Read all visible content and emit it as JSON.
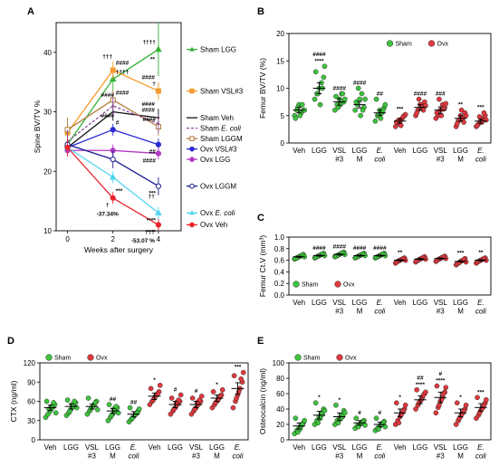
{
  "figure": {
    "panel_labels": [
      "A",
      "B",
      "C",
      "D",
      "E"
    ]
  },
  "chart_data": [
    {
      "panel": "A",
      "type": "line",
      "xlabel": "Weeks after surgery",
      "ylabel": "Spine BV/TV %",
      "x": [
        0,
        2,
        4
      ],
      "xticks": [
        "0",
        "2",
        "4"
      ],
      "ylim": [
        10,
        45
      ],
      "yticks": [
        "10",
        "20",
        "30",
        "40"
      ],
      "series": [
        {
          "name": "Sham LGG",
          "color": "#33b233",
          "marker": "triangle",
          "fill": "filled",
          "values": [
            24.5,
            35.5,
            40.5
          ],
          "err": [
            1.5,
            2,
            4.5
          ],
          "ann": [
            "",
            "††††",
            "††††"
          ]
        },
        {
          "name": "Sham VSL#3",
          "color": "#f39c2e",
          "marker": "square",
          "fill": "filled",
          "values": [
            26.5,
            37,
            33.5
          ],
          "err": [
            1.5,
            1.5,
            1.5
          ],
          "ann": [
            "",
            "####",
            "†"
          ]
        },
        {
          "name": "Sham Veh",
          "color": "#111111",
          "marker": "none",
          "fill": "filled",
          "values": [
            24,
            30,
            29
          ],
          "err": [
            1,
            1.5,
            1.5
          ],
          "ann": [
            "",
            "",
            ""
          ]
        },
        {
          "name": "Sham LGGM",
          "color": "#b07c3c",
          "marker": "square",
          "fill": "open",
          "values": [
            27,
            32,
            27.5
          ],
          "err": [
            2,
            1.5,
            1.5
          ],
          "ann": [
            "",
            "####",
            "####"
          ]
        },
        {
          "name": "Sham E. coli",
          "color": "#8e4a9e",
          "marker": "none",
          "fill": "dashed",
          "values": [
            25,
            31,
            28
          ],
          "err": [
            2,
            1.5,
            1.5
          ],
          "ann": [
            "",
            "",
            ""
          ]
        },
        {
          "name": "Ovx VSL#3",
          "color": "#2b2bd0",
          "marker": "circle",
          "fill": "filled",
          "values": [
            24,
            27,
            24.5
          ],
          "err": [
            1,
            1,
            1
          ],
          "ann": [
            "",
            "#",
            "##"
          ]
        },
        {
          "name": "Ovx LGG",
          "color": "#b238c4",
          "marker": "circle",
          "fill": "filled",
          "values": [
            23.5,
            23.5,
            23
          ],
          "err": [
            1,
            1,
            1
          ],
          "ann": [
            "",
            "",
            "####"
          ]
        },
        {
          "name": "Ovx LGGM",
          "color": "#1a1a90",
          "marker": "circle",
          "fill": "open",
          "values": [
            24.5,
            22,
            17.5
          ],
          "err": [
            1,
            1.5,
            1.5
          ],
          "ann": [
            "",
            "",
            "***"
          ]
        },
        {
          "name": "Ovx E. coli",
          "color": "#4fd4ee",
          "marker": "triangle",
          "fill": "filled",
          "values": [
            24,
            19,
            13
          ],
          "err": [
            1,
            1,
            1
          ],
          "ann": [
            "",
            "",
            "****"
          ]
        },
        {
          "name": "Ovx Veh",
          "color": "#e8232d",
          "marker": "circle",
          "fill": "filled",
          "values": [
            24,
            15.5,
            11
          ],
          "err": [
            1.5,
            1,
            1
          ],
          "ann": [
            "",
            "***",
            "****"
          ]
        }
      ],
      "legend_order": [
        "Sham LGG",
        "Sham VSL#3",
        "Sham Veh",
        "Sham LGGM",
        "Sham E. coli",
        "Ovx VSL#3",
        "Ovx LGG",
        "Ovx LGGM",
        "Ovx E. coli",
        "Ovx Veh"
      ],
      "annotations": [
        {
          "text": "**",
          "x": 4,
          "y": 38.5
        },
        {
          "text": "####",
          "x": 4,
          "y": 35.5
        },
        {
          "text": "†††",
          "x": 2,
          "y": 39
        },
        {
          "text": "####",
          "x": 2,
          "y": 32.5
        },
        {
          "text": "####",
          "x": 4,
          "y": 31
        },
        {
          "text": "####",
          "x": 4,
          "y": 30
        },
        {
          "text": "####",
          "x": 2,
          "y": 29
        },
        {
          "text": "†",
          "x": 2,
          "y": 14
        },
        {
          "text": "††",
          "x": 4,
          "y": 15.5
        },
        {
          "text": "†††",
          "x": 4,
          "y": 9.5
        },
        {
          "text": "-37.34%",
          "x": 2,
          "y": 12.5
        },
        {
          "text": "-53.07 %",
          "x": 4,
          "y": 8
        }
      ]
    },
    {
      "panel": "B",
      "type": "scatter",
      "ylabel": "Femur BV/TV (%)",
      "ylim": [
        0,
        20
      ],
      "yticks": [
        "0",
        "5",
        "10",
        "15",
        "20"
      ],
      "categories": [
        "Veh",
        "LGG",
        "VSL #3",
        "LGG M",
        "E. coli",
        "Veh",
        "LGG",
        "VSL #3",
        "LGG M",
        "E. coli"
      ],
      "cat_lines": [
        [
          "Veh"
        ],
        [
          "LGG"
        ],
        [
          "VSL",
          "#3"
        ],
        [
          "LGG",
          "M"
        ],
        [
          "E.",
          "coli"
        ],
        [
          "Veh"
        ],
        [
          "LGG"
        ],
        [
          "VSL",
          "#3"
        ],
        [
          "LGG",
          "M"
        ],
        [
          "E.",
          "coli"
        ]
      ],
      "groups": [
        "Sham",
        "Sham",
        "Sham",
        "Sham",
        "Sham",
        "Ovx",
        "Ovx",
        "Ovx",
        "Ovx",
        "Ovx"
      ],
      "means": [
        6,
        10,
        7.5,
        7,
        5.5,
        4,
        6.5,
        6,
        4.5,
        4
      ],
      "err": [
        0.5,
        1,
        0.6,
        0.6,
        0.5,
        0.4,
        0.5,
        0.6,
        0.5,
        0.4
      ],
      "points": [
        [
          5,
          6,
          7,
          5.5,
          6,
          4.5,
          6.5,
          5,
          7,
          6
        ],
        [
          8,
          9,
          10,
          11,
          12,
          13,
          9,
          7,
          10,
          14
        ],
        [
          6,
          7,
          8,
          9,
          7.5,
          8.5,
          6.5,
          7,
          9,
          8
        ],
        [
          6,
          7,
          8,
          9,
          6.5,
          7.5,
          10,
          5,
          6,
          8
        ],
        [
          4,
          5,
          6,
          5.5,
          6.5,
          8,
          5,
          4.5,
          6,
          7
        ],
        [
          3,
          3.5,
          4,
          4.5,
          5,
          3.8,
          4.2,
          3.2,
          4.8,
          5.2
        ],
        [
          5,
          6,
          7,
          6.5,
          7.5,
          5.5,
          8,
          7,
          6,
          6.8
        ],
        [
          4.5,
          5,
          6,
          7,
          6.5,
          5.5,
          8,
          5,
          6.2,
          7.2
        ],
        [
          3,
          4,
          5,
          4.5,
          5.5,
          3.5,
          4.2,
          6,
          3.8,
          5
        ],
        [
          3,
          3.5,
          4,
          4.5,
          5,
          3.2,
          4.8,
          3.8,
          5.5,
          4.2
        ]
      ],
      "sig": [
        "",
        "####\n****",
        "####",
        "####",
        "##",
        "***",
        "####",
        "###",
        "**",
        "***"
      ],
      "legend": [
        {
          "name": "Sham",
          "color": "#3ec43e"
        },
        {
          "name": "Ovx",
          "color": "#e0393e"
        }
      ],
      "legend_position": "top-right"
    },
    {
      "panel": "C",
      "type": "scatter",
      "ylabel": "Femur Ct.V (mm³)",
      "ylim": [
        0,
        1
      ],
      "yticks": [
        "0.0",
        "0.2",
        "0.4",
        "0.6",
        "0.8",
        "1.0"
      ],
      "categories": [
        "Veh",
        "LGG",
        "VSL #3",
        "LGG M",
        "E. coli",
        "Veh",
        "LGG",
        "VSL #3",
        "LGG M",
        "E. coli"
      ],
      "cat_lines": [
        [
          "Veh"
        ],
        [
          "LGG"
        ],
        [
          "VSL",
          "#3"
        ],
        [
          "LGG",
          "M"
        ],
        [
          "E.",
          "coli"
        ],
        [
          "Veh"
        ],
        [
          "LGG"
        ],
        [
          "VSL",
          "#3"
        ],
        [
          "LGG",
          "M"
        ],
        [
          "E.",
          "coli"
        ]
      ],
      "groups": [
        "Sham",
        "Sham",
        "Sham",
        "Sham",
        "Sham",
        "Ovx",
        "Ovx",
        "Ovx",
        "Ovx",
        "Ovx"
      ],
      "means": [
        0.66,
        0.68,
        0.7,
        0.68,
        0.68,
        0.6,
        0.62,
        0.63,
        0.58,
        0.6
      ],
      "err": [
        0.01,
        0.01,
        0.01,
        0.01,
        0.01,
        0.01,
        0.01,
        0.01,
        0.01,
        0.01
      ],
      "points": [
        [
          0.62,
          0.64,
          0.66,
          0.68,
          0.7,
          0.63,
          0.65,
          0.67,
          0.69,
          0.66
        ],
        [
          0.64,
          0.66,
          0.68,
          0.7,
          0.72,
          0.65,
          0.67,
          0.69,
          0.71,
          0.68
        ],
        [
          0.66,
          0.68,
          0.7,
          0.72,
          0.74,
          0.67,
          0.69,
          0.71,
          0.73,
          0.7
        ],
        [
          0.64,
          0.66,
          0.68,
          0.7,
          0.72,
          0.65,
          0.67,
          0.69,
          0.71,
          0.68
        ],
        [
          0.64,
          0.66,
          0.68,
          0.7,
          0.72,
          0.65,
          0.67,
          0.69,
          0.71,
          0.68
        ],
        [
          0.55,
          0.58,
          0.6,
          0.62,
          0.64,
          0.57,
          0.59,
          0.61,
          0.63,
          0.6
        ],
        [
          0.57,
          0.6,
          0.62,
          0.64,
          0.66,
          0.59,
          0.61,
          0.63,
          0.65,
          0.62
        ],
        [
          0.58,
          0.61,
          0.63,
          0.65,
          0.67,
          0.6,
          0.62,
          0.64,
          0.66,
          0.63
        ],
        [
          0.52,
          0.55,
          0.58,
          0.6,
          0.63,
          0.54,
          0.56,
          0.59,
          0.61,
          0.57
        ],
        [
          0.55,
          0.58,
          0.6,
          0.62,
          0.64,
          0.57,
          0.59,
          0.61,
          0.63,
          0.6
        ]
      ],
      "sig": [
        "",
        "####",
        "####",
        "####",
        "####",
        "**",
        "",
        "",
        "***",
        "**"
      ],
      "legend": [
        {
          "name": "Sham",
          "color": "#3ec43e"
        },
        {
          "name": "Ovx",
          "color": "#e0393e"
        }
      ],
      "legend_position": "bottom-left"
    },
    {
      "panel": "D",
      "type": "scatter",
      "ylabel": "CTX (ng/ml)",
      "ylim": [
        0,
        120
      ],
      "yticks": [
        "0",
        "30",
        "60",
        "90",
        "120"
      ],
      "categories": [
        "Veh",
        "LGG",
        "VSL #3",
        "LGG M",
        "E. coli",
        "Veh",
        "LGG",
        "VSL #3",
        "LGG M",
        "E. coli"
      ],
      "cat_lines": [
        [
          "Veh"
        ],
        [
          "LGG"
        ],
        [
          "VSL",
          "#3"
        ],
        [
          "LGG",
          "M"
        ],
        [
          "E.",
          "coli"
        ],
        [
          "Veh"
        ],
        [
          "LGG"
        ],
        [
          "VSL",
          "#3"
        ],
        [
          "LGG",
          "M"
        ],
        [
          "E.",
          "coli"
        ]
      ],
      "groups": [
        "Sham",
        "Sham",
        "Sham",
        "Sham",
        "Sham",
        "Ovx",
        "Ovx",
        "Ovx",
        "Ovx",
        "Ovx"
      ],
      "means": [
        50,
        52,
        52,
        45,
        40,
        68,
        55,
        55,
        65,
        80
      ],
      "err": [
        4,
        4,
        4,
        4,
        4,
        5,
        5,
        5,
        5,
        9
      ],
      "points": [
        [
          35,
          40,
          45,
          50,
          55,
          60,
          48,
          52,
          58,
          42
        ],
        [
          38,
          42,
          48,
          52,
          58,
          62,
          45,
          55,
          60,
          50
        ],
        [
          40,
          45,
          50,
          55,
          60,
          65,
          48,
          52,
          58,
          47
        ],
        [
          30,
          35,
          40,
          45,
          50,
          55,
          38,
          48,
          52,
          42
        ],
        [
          28,
          32,
          36,
          40,
          45,
          50,
          34,
          38,
          42,
          48
        ],
        [
          55,
          60,
          65,
          70,
          75,
          80,
          62,
          68,
          72,
          85
        ],
        [
          40,
          45,
          50,
          55,
          60,
          65,
          48,
          58,
          62,
          70
        ],
        [
          40,
          45,
          50,
          55,
          60,
          65,
          48,
          58,
          62,
          68
        ],
        [
          50,
          55,
          60,
          65,
          70,
          75,
          58,
          62,
          68,
          78
        ],
        [
          50,
          60,
          70,
          80,
          90,
          100,
          65,
          75,
          95,
          105
        ]
      ],
      "sig": [
        "",
        "",
        "",
        "##",
        "##",
        "*",
        "#",
        "#",
        "*",
        "***"
      ],
      "legend": [
        {
          "name": "Sham",
          "color": "#3ec43e"
        },
        {
          "name": "Ovx",
          "color": "#e0393e"
        }
      ],
      "legend_position": "top"
    },
    {
      "panel": "E",
      "type": "scatter",
      "ylabel": "Osteocalcin (ng/ml)",
      "ylim": [
        0,
        100
      ],
      "yticks": [
        "0",
        "20",
        "40",
        "60",
        "80",
        "100"
      ],
      "categories": [
        "Veh",
        "LGG",
        "VSL #3",
        "LGG M",
        "E. coli",
        "Veh",
        "LGG",
        "VSL #3",
        "LGG M",
        "E. coli"
      ],
      "cat_lines": [
        [
          "Veh"
        ],
        [
          "LGG"
        ],
        [
          "VSL",
          "#3"
        ],
        [
          "LGG",
          "M"
        ],
        [
          "E.",
          "coli"
        ],
        [
          "Veh"
        ],
        [
          "LGG"
        ],
        [
          "VSL",
          "#3"
        ],
        [
          "LGG",
          "M"
        ],
        [
          "E.",
          "coli"
        ]
      ],
      "groups": [
        "Sham",
        "Sham",
        "Sham",
        "Sham",
        "Sham",
        "Ovx",
        "Ovx",
        "Ovx",
        "Ovx",
        "Ovx"
      ],
      "means": [
        18,
        32,
        30,
        22,
        20,
        35,
        52,
        55,
        35,
        42
      ],
      "err": [
        4,
        5,
        5,
        3,
        3,
        5,
        5,
        7,
        5,
        5
      ],
      "points": [
        [
          8,
          12,
          15,
          18,
          22,
          28,
          10,
          14,
          20,
          25
        ],
        [
          20,
          25,
          30,
          35,
          40,
          48,
          22,
          28,
          33,
          38
        ],
        [
          20,
          25,
          28,
          32,
          38,
          45,
          22,
          27,
          30,
          35
        ],
        [
          15,
          18,
          20,
          22,
          25,
          28,
          17,
          21,
          24,
          19
        ],
        [
          12,
          15,
          18,
          20,
          24,
          28,
          14,
          19,
          22,
          17
        ],
        [
          20,
          25,
          30,
          35,
          40,
          48,
          22,
          32,
          38,
          45
        ],
        [
          40,
          45,
          50,
          55,
          60,
          65,
          48,
          52,
          58,
          62
        ],
        [
          35,
          42,
          50,
          55,
          62,
          70,
          45,
          52,
          60,
          68
        ],
        [
          20,
          25,
          30,
          35,
          40,
          48,
          28,
          33,
          38,
          45
        ],
        [
          28,
          32,
          38,
          42,
          48,
          55,
          35,
          40,
          45,
          52
        ]
      ],
      "sig": [
        "",
        "*",
        "*",
        "#",
        "#",
        "*",
        "##\n****",
        "#\n****",
        "*",
        "***"
      ],
      "legend": [
        {
          "name": "Sham",
          "color": "#3ec43e"
        },
        {
          "name": "Ovx",
          "color": "#e0393e"
        }
      ],
      "legend_position": "top"
    }
  ]
}
